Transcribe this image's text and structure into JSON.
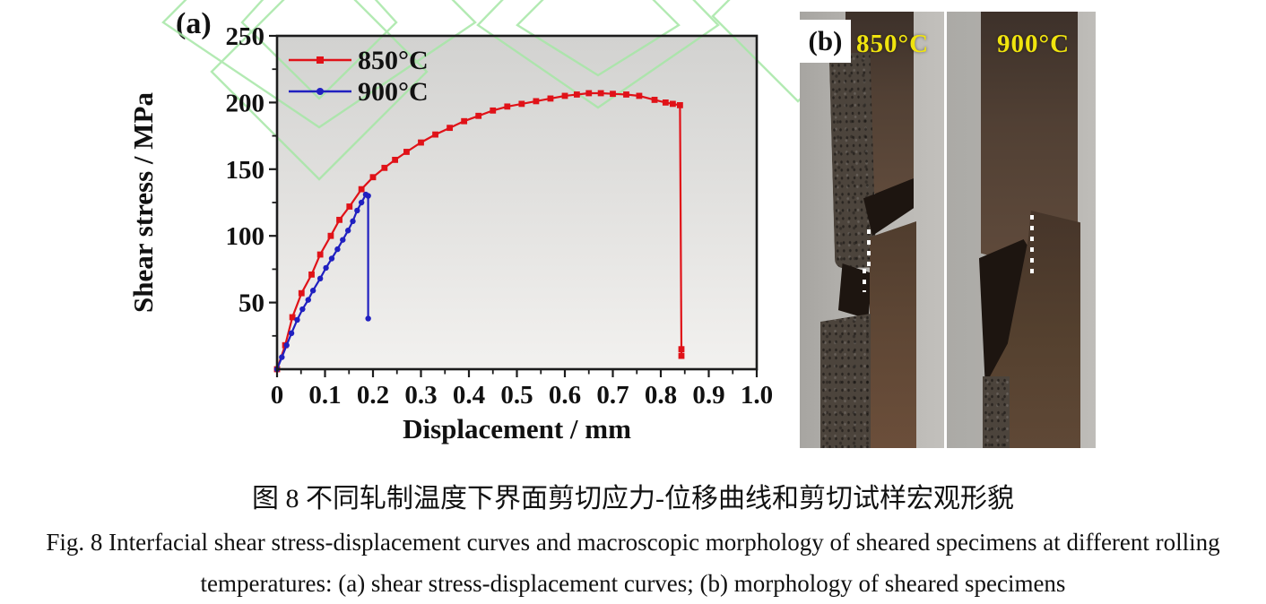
{
  "figure": {
    "panel_a_label": "(a)",
    "panel_b_label": "(b)",
    "caption_zh": "图 8 不同轧制温度下界面剪切应力-位移曲线和剪切试样宏观形貌",
    "caption_en_line1": "Fig. 8 Interfacial shear stress-displacement curves and macroscopic morphology of sheared specimens at different rolling",
    "caption_en_line2": "temperatures: (a) shear stress-displacement curves; (b) morphology of sheared specimens"
  },
  "photos": {
    "left_label": "850°C",
    "right_label": "900°C",
    "label_color": "#f0e40e"
  },
  "colors": {
    "curve_850": "#e01218",
    "curve_900": "#2020c0",
    "axis": "#1c1c1c",
    "watermark_green": "#a6e7a6",
    "plot_bg_top": "#d2d2d0",
    "plot_bg_bottom": "#f2f1ef"
  },
  "chart_data": {
    "type": "line",
    "title": "",
    "xlabel": "Displacement / mm",
    "ylabel": "Shear stress / MPa",
    "xlim": [
      0,
      1.0
    ],
    "ylim": [
      0,
      250
    ],
    "grid": false,
    "legend_position": "top-left",
    "x_ticks": {
      "values": [
        0,
        0.1,
        0.2,
        0.3,
        0.4,
        0.5,
        0.6,
        0.7,
        0.8,
        0.9,
        1.0
      ],
      "labels": [
        "0",
        "0.1",
        "0.2",
        "0.3",
        "0.4",
        "0.5",
        "0.6",
        "0.7",
        "0.8",
        "0.9",
        "1.0"
      ]
    },
    "y_ticks": {
      "values": [
        50,
        100,
        150,
        200,
        250
      ],
      "labels": [
        "50",
        "100",
        "150",
        "200",
        "250"
      ]
    },
    "x_minor_ticks": [
      0.05,
      0.15,
      0.25,
      0.35,
      0.45,
      0.55,
      0.65,
      0.75,
      0.85,
      0.95
    ],
    "y_minor_ticks": [
      25,
      75,
      125,
      175,
      225
    ],
    "series": [
      {
        "name": "850°C",
        "color": "#e01218",
        "marker": "square",
        "x": [
          0,
          0.017,
          0.032,
          0.051,
          0.072,
          0.09,
          0.112,
          0.13,
          0.151,
          0.176,
          0.2,
          0.224,
          0.246,
          0.27,
          0.3,
          0.33,
          0.36,
          0.39,
          0.42,
          0.45,
          0.48,
          0.51,
          0.54,
          0.57,
          0.6,
          0.625,
          0.65,
          0.675,
          0.7,
          0.728,
          0.755,
          0.787,
          0.81,
          0.825,
          0.84,
          0.843,
          0.843
        ],
        "y": [
          0,
          18,
          39,
          57,
          71,
          86,
          100,
          112,
          122,
          135,
          144,
          151,
          157,
          163,
          170,
          176,
          181,
          186,
          190,
          194,
          197,
          199,
          201,
          203,
          205,
          206,
          207,
          207,
          206.5,
          206,
          205,
          202,
          200,
          199,
          198,
          15,
          10
        ]
      },
      {
        "name": "900°C",
        "color": "#2020c0",
        "marker": "circle",
        "x": [
          0,
          0.01,
          0.02,
          0.03,
          0.042,
          0.053,
          0.065,
          0.075,
          0.09,
          0.102,
          0.114,
          0.126,
          0.137,
          0.148,
          0.158,
          0.167,
          0.176,
          0.185,
          0.19,
          0.19
        ],
        "y": [
          0,
          9,
          18,
          27,
          37,
          45,
          52,
          59,
          68,
          76,
          83,
          90,
          97,
          104,
          111,
          119,
          125,
          131,
          130,
          38
        ]
      }
    ]
  }
}
